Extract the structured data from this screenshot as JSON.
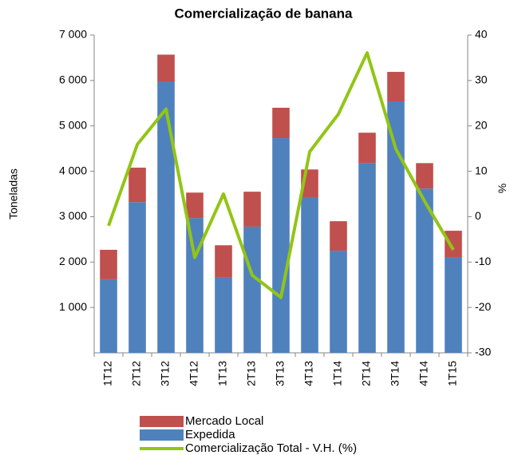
{
  "chart_data": {
    "type": "bar",
    "title": "Comercialização de banana",
    "y_label": "Toneladas",
    "y2_label": "%",
    "categories": [
      "1T12",
      "2T12",
      "3T12",
      "4T12",
      "1T13",
      "2T13",
      "3T13",
      "4T13",
      "1T14",
      "2T14",
      "3T14",
      "4T14",
      "1T15"
    ],
    "series": [
      {
        "name": "Mercado Local",
        "type": "bar",
        "color": "#c0504d",
        "values": [
          650,
          760,
          590,
          560,
          700,
          770,
          670,
          610,
          650,
          670,
          650,
          560,
          580
        ]
      },
      {
        "name": "Expedida",
        "type": "bar",
        "color": "#4f81bd",
        "values": [
          1620,
          3320,
          5980,
          2970,
          1670,
          2780,
          4730,
          3430,
          2250,
          4180,
          5540,
          3620,
          2110
        ]
      },
      {
        "name": "Comercialização Total - V.H. (%)",
        "type": "line",
        "axis": "y2",
        "color": "#92c515",
        "values": [
          -2.0,
          15.9,
          23.7,
          -9.0,
          5.0,
          -12.9,
          -17.8,
          14.3,
          22.6,
          36.1,
          14.9,
          3.4,
          -7.3
        ]
      }
    ],
    "ylim": [
      0,
      7000
    ],
    "yticks": [
      {
        "value": 1000,
        "label": "1 000"
      },
      {
        "value": 2000,
        "label": "2 000"
      },
      {
        "value": 3000,
        "label": "3 000"
      },
      {
        "value": 4000,
        "label": "4 000"
      },
      {
        "value": 5000,
        "label": "5 000"
      },
      {
        "value": 6000,
        "label": "6 000"
      },
      {
        "value": 7000,
        "label": "7 000"
      }
    ],
    "y2lim": [
      -30,
      40
    ],
    "y2ticks": [
      -30,
      -20,
      -10,
      0,
      10,
      20,
      30,
      40
    ]
  }
}
